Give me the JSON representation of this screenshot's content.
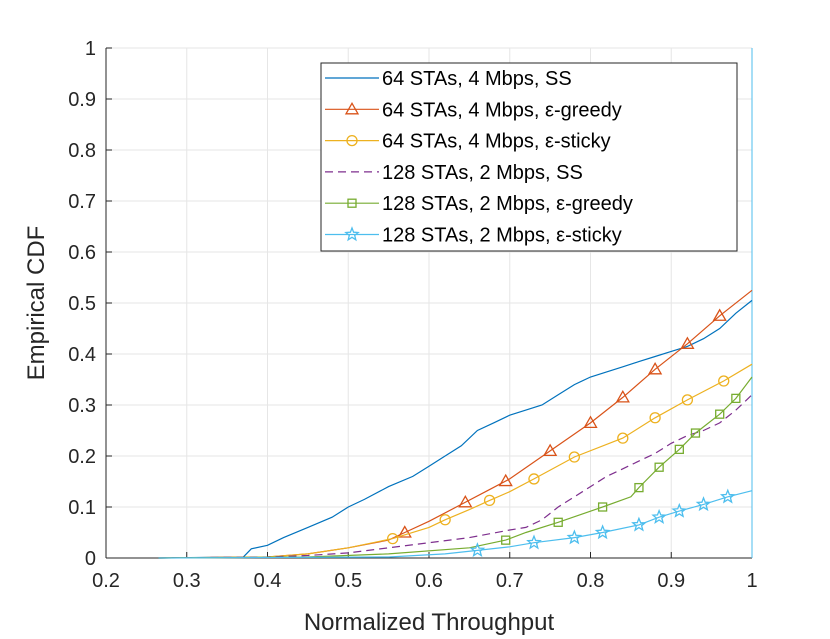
{
  "chart_data": {
    "type": "line",
    "title": "",
    "xlabel": "Normalized Throughput",
    "ylabel": "Empirical CDF",
    "xlim": [
      0.2,
      1
    ],
    "ylim": [
      0,
      1
    ],
    "grid": true,
    "legend_position": "top-right",
    "x_ticks": [
      "0.2",
      "0.3",
      "0.4",
      "0.5",
      "0.6",
      "0.7",
      "0.8",
      "0.9",
      "1"
    ],
    "y_ticks": [
      "0",
      "0.1",
      "0.2",
      "0.3",
      "0.4",
      "0.5",
      "0.6",
      "0.7",
      "0.8",
      "0.9",
      "1"
    ],
    "series": [
      {
        "name": "64 STAs, 4 Mbps, SS",
        "color": "#0072BD",
        "dash": "solid",
        "marker": "none",
        "points": [
          [
            0.265,
            0
          ],
          [
            0.37,
            0.002
          ],
          [
            0.375,
            0.01
          ],
          [
            0.38,
            0.018
          ],
          [
            0.4,
            0.025
          ],
          [
            0.42,
            0.04
          ],
          [
            0.45,
            0.06
          ],
          [
            0.48,
            0.08
          ],
          [
            0.5,
            0.1
          ],
          [
            0.52,
            0.115
          ],
          [
            0.55,
            0.14
          ],
          [
            0.58,
            0.16
          ],
          [
            0.6,
            0.18
          ],
          [
            0.62,
            0.2
          ],
          [
            0.64,
            0.22
          ],
          [
            0.66,
            0.25
          ],
          [
            0.68,
            0.265
          ],
          [
            0.7,
            0.28
          ],
          [
            0.72,
            0.29
          ],
          [
            0.74,
            0.3
          ],
          [
            0.76,
            0.32
          ],
          [
            0.78,
            0.34
          ],
          [
            0.8,
            0.355
          ],
          [
            0.82,
            0.365
          ],
          [
            0.84,
            0.375
          ],
          [
            0.86,
            0.385
          ],
          [
            0.88,
            0.395
          ],
          [
            0.9,
            0.405
          ],
          [
            0.92,
            0.415
          ],
          [
            0.94,
            0.43
          ],
          [
            0.96,
            0.45
          ],
          [
            0.98,
            0.48
          ],
          [
            1.0,
            0.505
          ]
        ]
      },
      {
        "name": "64 STAs, 4 Mbps, ε-greedy",
        "color": "#D95319",
        "dash": "solid",
        "marker": "triangle",
        "points": [
          [
            0.265,
            0
          ],
          [
            0.4,
            0.002
          ],
          [
            0.45,
            0.008
          ],
          [
            0.5,
            0.02
          ],
          [
            0.55,
            0.035
          ],
          [
            0.57,
            0.05
          ],
          [
            0.6,
            0.072
          ],
          [
            0.64,
            0.105
          ],
          [
            0.67,
            0.13
          ],
          [
            0.7,
            0.155
          ],
          [
            0.75,
            0.21
          ],
          [
            0.8,
            0.265
          ],
          [
            0.84,
            0.315
          ],
          [
            0.88,
            0.37
          ],
          [
            0.92,
            0.42
          ],
          [
            0.96,
            0.475
          ],
          [
            1.0,
            0.525
          ]
        ],
        "markers_x": [
          0.57,
          0.645,
          0.695,
          0.75,
          0.8,
          0.84,
          0.88,
          0.92,
          0.96
        ]
      },
      {
        "name": "64 STAs, 4 Mbps, ε-sticky",
        "color": "#EDB120",
        "dash": "solid",
        "marker": "circle",
        "points": [
          [
            0.265,
            0
          ],
          [
            0.4,
            0.002
          ],
          [
            0.45,
            0.008
          ],
          [
            0.5,
            0.02
          ],
          [
            0.555,
            0.038
          ],
          [
            0.6,
            0.06
          ],
          [
            0.62,
            0.075
          ],
          [
            0.65,
            0.095
          ],
          [
            0.675,
            0.113
          ],
          [
            0.7,
            0.13
          ],
          [
            0.73,
            0.155
          ],
          [
            0.78,
            0.198
          ],
          [
            0.84,
            0.235
          ],
          [
            0.88,
            0.275
          ],
          [
            0.92,
            0.31
          ],
          [
            0.965,
            0.347
          ],
          [
            1.0,
            0.38
          ]
        ],
        "markers_x": [
          0.555,
          0.62,
          0.675,
          0.73,
          0.78,
          0.84,
          0.88,
          0.92,
          0.965
        ]
      },
      {
        "name": "128 STAs, 2 Mbps, SS",
        "color": "#7E2F8E",
        "dash": "dashed",
        "marker": "none",
        "points": [
          [
            0.265,
            0
          ],
          [
            0.4,
            0.002
          ],
          [
            0.45,
            0.005
          ],
          [
            0.5,
            0.01
          ],
          [
            0.55,
            0.02
          ],
          [
            0.6,
            0.03
          ],
          [
            0.65,
            0.04
          ],
          [
            0.7,
            0.055
          ],
          [
            0.72,
            0.06
          ],
          [
            0.74,
            0.075
          ],
          [
            0.76,
            0.1
          ],
          [
            0.78,
            0.12
          ],
          [
            0.8,
            0.14
          ],
          [
            0.82,
            0.16
          ],
          [
            0.84,
            0.175
          ],
          [
            0.86,
            0.19
          ],
          [
            0.88,
            0.205
          ],
          [
            0.9,
            0.225
          ],
          [
            0.92,
            0.24
          ],
          [
            0.94,
            0.25
          ],
          [
            0.96,
            0.265
          ],
          [
            0.98,
            0.29
          ],
          [
            1.0,
            0.32
          ]
        ]
      },
      {
        "name": "128 STAs, 2 Mbps, ε-greedy",
        "color": "#77AC30",
        "dash": "solid",
        "marker": "square",
        "points": [
          [
            0.265,
            0
          ],
          [
            0.45,
            0.002
          ],
          [
            0.55,
            0.008
          ],
          [
            0.65,
            0.02
          ],
          [
            0.695,
            0.035
          ],
          [
            0.72,
            0.05
          ],
          [
            0.76,
            0.07
          ],
          [
            0.815,
            0.1
          ],
          [
            0.85,
            0.12
          ],
          [
            0.86,
            0.138
          ],
          [
            0.885,
            0.178
          ],
          [
            0.91,
            0.213
          ],
          [
            0.93,
            0.245
          ],
          [
            0.96,
            0.282
          ],
          [
            0.98,
            0.313
          ],
          [
            1.0,
            0.355
          ]
        ],
        "markers_x": [
          0.695,
          0.76,
          0.815,
          0.86,
          0.885,
          0.91,
          0.93,
          0.96,
          0.98
        ]
      },
      {
        "name": "128 STAs, 2 Mbps, ε-sticky",
        "color": "#4DBEEE",
        "dash": "solid",
        "marker": "star",
        "points": [
          [
            0.265,
            0
          ],
          [
            0.55,
            0.002
          ],
          [
            0.62,
            0.008
          ],
          [
            0.66,
            0.015
          ],
          [
            0.7,
            0.022
          ],
          [
            0.73,
            0.03
          ],
          [
            0.78,
            0.04
          ],
          [
            0.815,
            0.05
          ],
          [
            0.86,
            0.065
          ],
          [
            0.885,
            0.08
          ],
          [
            0.91,
            0.092
          ],
          [
            0.94,
            0.105
          ],
          [
            0.97,
            0.12
          ],
          [
            1.0,
            0.132
          ]
        ],
        "markers_x": [
          0.66,
          0.73,
          0.78,
          0.815,
          0.86,
          0.885,
          0.91,
          0.94,
          0.97
        ]
      }
    ]
  }
}
